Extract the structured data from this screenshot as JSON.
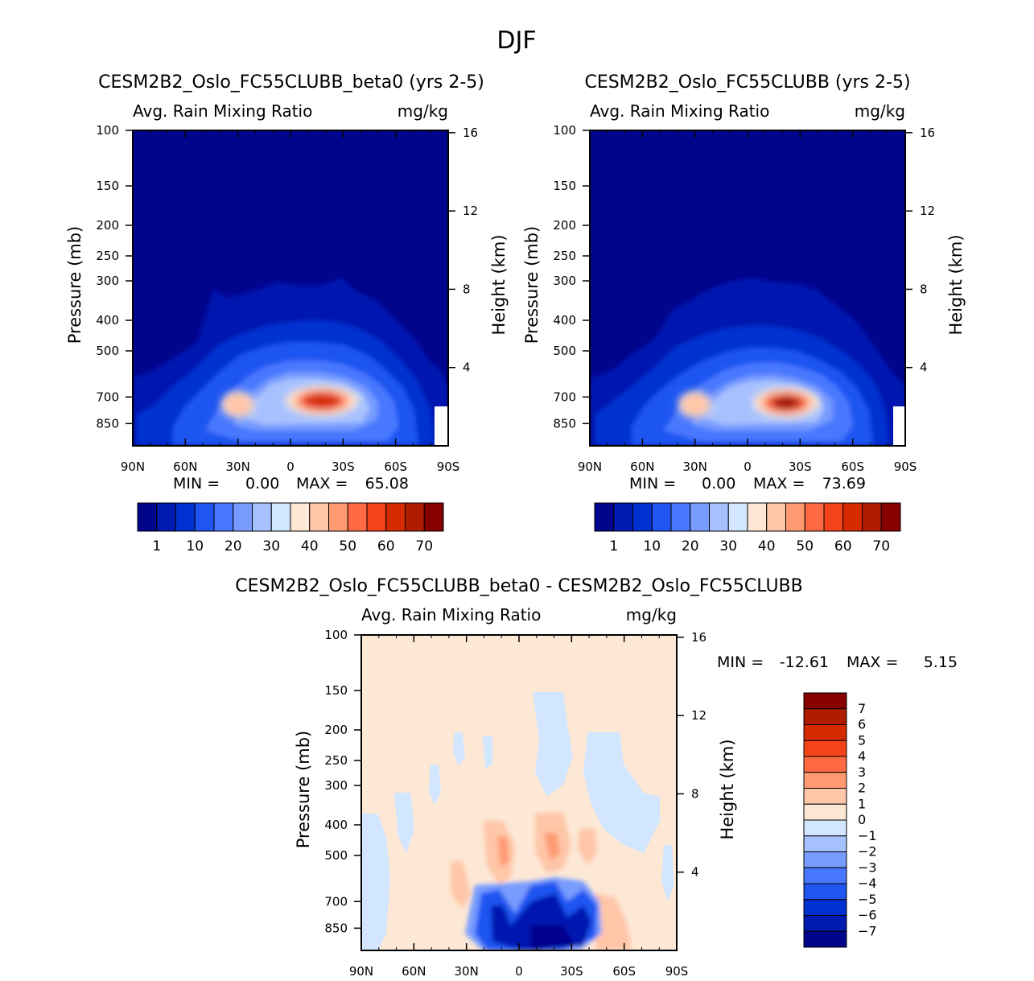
{
  "figure_title": "DJF",
  "chart_data": [
    {
      "type": "heatmap",
      "title": "CESM2B2_Oslo_FC55CLUBB_beta0 (yrs 2-5)",
      "variable": "Avg. Rain Mixing Ratio",
      "units": "mg/kg",
      "ylabel": "Pressure (mb)",
      "ylabel_right": "Height (km)",
      "x_ticks": [
        "90N",
        "60N",
        "30N",
        "0",
        "30S",
        "60S",
        "90S"
      ],
      "y_ticks": [
        100,
        150,
        200,
        250,
        300,
        400,
        500,
        700,
        850
      ],
      "y_ticks_right": [
        16,
        12,
        8,
        4
      ],
      "ylim": [
        100,
        1000
      ],
      "xlim": [
        90,
        -90
      ],
      "stats": {
        "min_label": "MIN =",
        "min": "0.00",
        "max_label": "MAX =",
        "max": "65.08"
      },
      "colorbar_labels": [
        "1",
        "10",
        "20",
        "30",
        "40",
        "50",
        "60",
        "70"
      ],
      "background": "#00058c",
      "features": [
        {
          "lat": -18,
          "p": 720,
          "value": 62,
          "spread_lat": 11,
          "spread_p": 90
        },
        {
          "lat": 30,
          "p": 740,
          "value": 45,
          "spread_lat": 5,
          "spread_p": 80
        }
      ]
    },
    {
      "type": "heatmap",
      "title": "CESM2B2_Oslo_FC55CLUBB (yrs 2-5)",
      "variable": "Avg. Rain Mixing Ratio",
      "units": "mg/kg",
      "ylabel": "Pressure (mb)",
      "ylabel_right": "Height (km)",
      "x_ticks": [
        "90N",
        "60N",
        "30N",
        "0",
        "30S",
        "60S",
        "90S"
      ],
      "y_ticks": [
        100,
        150,
        200,
        250,
        300,
        400,
        500,
        700,
        850
      ],
      "y_ticks_right": [
        16,
        12,
        8,
        4
      ],
      "ylim": [
        100,
        1000
      ],
      "xlim": [
        90,
        -90
      ],
      "stats": {
        "min_label": "MIN =",
        "min": "0.00",
        "max_label": "MAX =",
        "max": "73.69"
      },
      "colorbar_labels": [
        "1",
        "10",
        "20",
        "30",
        "40",
        "50",
        "60",
        "70"
      ],
      "background": "#00058c",
      "features": [
        {
          "lat": -22,
          "p": 730,
          "value": 72,
          "spread_lat": 10,
          "spread_p": 90
        },
        {
          "lat": 30,
          "p": 740,
          "value": 42,
          "spread_lat": 5,
          "spread_p": 80
        }
      ]
    },
    {
      "type": "heatmap",
      "title": "CESM2B2_Oslo_FC55CLUBB_beta0 - CESM2B2_Oslo_FC55CLUBB",
      "variable": "Avg. Rain Mixing Ratio",
      "units": "mg/kg",
      "ylabel": "Pressure (mb)",
      "ylabel_right": "Height (km)",
      "x_ticks": [
        "90N",
        "60N",
        "30N",
        "0",
        "30S",
        "60S",
        "90S"
      ],
      "y_ticks": [
        100,
        150,
        200,
        250,
        300,
        400,
        500,
        700,
        850
      ],
      "y_ticks_right": [
        16,
        12,
        8,
        4
      ],
      "ylim": [
        100,
        1000
      ],
      "xlim": [
        90,
        -90
      ],
      "stats": {
        "min_label": "MIN =",
        "min": "-12.61",
        "max_label": "MAX =",
        "max": "5.15"
      },
      "colorbar_labels": [
        "7",
        "6",
        "5",
        "4",
        "3",
        "2",
        "1",
        "0",
        "-1",
        "-2",
        "-3",
        "-4",
        "-5",
        "-6",
        "-7"
      ],
      "background": "#fde8d6"
    }
  ],
  "colors": {
    "sequential": [
      "#00058c",
      "#0019b0",
      "#0031d0",
      "#1f55f0",
      "#4878ff",
      "#779bff",
      "#a6c1ff",
      "#d2e6ff",
      "#fde8d6",
      "#ffc6a8",
      "#ff9a72",
      "#ff6a44",
      "#f24418",
      "#d62a00",
      "#b01c00",
      "#860000"
    ],
    "diverging": [
      "#860000",
      "#b01c00",
      "#d62a00",
      "#f24418",
      "#ff6a44",
      "#ff9a72",
      "#ffc6a8",
      "#fde8d6",
      "#d2e6ff",
      "#a6c1ff",
      "#779bff",
      "#4878ff",
      "#1f55f0",
      "#0031d0",
      "#0019b0",
      "#00058c"
    ]
  }
}
